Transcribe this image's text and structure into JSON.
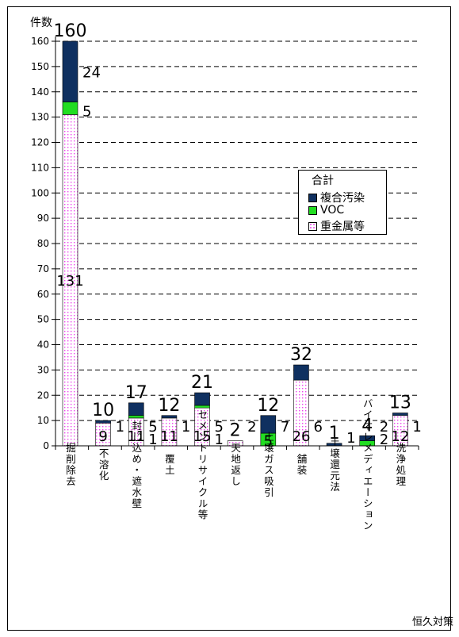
{
  "chart_data": {
    "type": "bar",
    "stacked": true,
    "ylabel": "件数",
    "xlabel": "恒久対策",
    "ylim": [
      0,
      160
    ],
    "ytick_step": 10,
    "grid": true,
    "legend_title": "合計",
    "legend_position": "center-right",
    "categories": [
      "掘削除去",
      "不溶化",
      "封じ込め・遮水壁",
      "覆土",
      "セメントリサイクル等",
      "天地返し",
      "土壌ガス吸引",
      "舗装",
      "土壌還元法",
      "バイオレメディエーション",
      "洗浄処理"
    ],
    "series": [
      {
        "name": "重金属等",
        "values": [
          131,
          9,
          11,
          11,
          15,
          2,
          0,
          26,
          0,
          0,
          12
        ],
        "color": "#ffffff",
        "pattern": "dots",
        "dot_color": "#ee44ee"
      },
      {
        "name": "VOC",
        "values": [
          5,
          0,
          1,
          0,
          1,
          0,
          5,
          0,
          0,
          2,
          0
        ],
        "color": "#22dd22"
      },
      {
        "name": "複合汚染",
        "values": [
          24,
          1,
          5,
          1,
          5,
          0,
          7,
          6,
          1,
          2,
          1
        ],
        "color": "#0f3060"
      }
    ],
    "totals": [
      160,
      10,
      17,
      12,
      21,
      2,
      12,
      32,
      1,
      4,
      13
    ],
    "data_labels": [
      {
        "bar": 0,
        "text": "24",
        "type": "side"
      },
      {
        "bar": 0,
        "text": "5",
        "type": "side"
      },
      {
        "bar": 0,
        "text": "131",
        "type": "inside"
      },
      {
        "bar": 1,
        "text": "9",
        "type": "inside"
      },
      {
        "bar": 1,
        "text": "1",
        "type": "side"
      },
      {
        "bar": 2,
        "text": "5",
        "type": "side"
      },
      {
        "bar": 2,
        "text": "1",
        "type": "side"
      },
      {
        "bar": 2,
        "text": "11",
        "type": "inside"
      },
      {
        "bar": 3,
        "text": "1",
        "type": "side"
      },
      {
        "bar": 3,
        "text": "11",
        "type": "inside"
      },
      {
        "bar": 4,
        "text": "5",
        "type": "side"
      },
      {
        "bar": 4,
        "text": "1",
        "type": "side"
      },
      {
        "bar": 4,
        "text": "15",
        "type": "inside"
      },
      {
        "bar": 5,
        "text": "2",
        "type": "side"
      },
      {
        "bar": 6,
        "text": "7",
        "type": "side"
      },
      {
        "bar": 6,
        "text": "5",
        "type": "inside"
      },
      {
        "bar": 7,
        "text": "6",
        "type": "side"
      },
      {
        "bar": 7,
        "text": "26",
        "type": "inside"
      },
      {
        "bar": 8,
        "text": "1",
        "type": "side"
      },
      {
        "bar": 9,
        "text": "2",
        "type": "side"
      },
      {
        "bar": 9,
        "text": "2",
        "type": "side"
      },
      {
        "bar": 10,
        "text": "1",
        "type": "side"
      },
      {
        "bar": 10,
        "text": "12",
        "type": "inside"
      }
    ]
  }
}
